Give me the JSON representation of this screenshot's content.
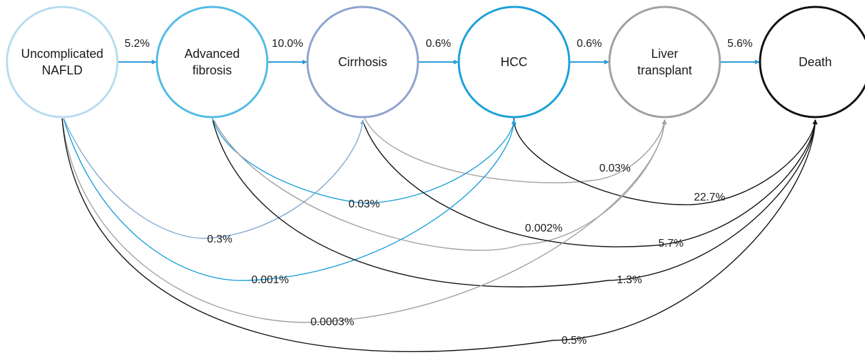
{
  "colors": {
    "light-blue": "#b7dcef",
    "sky-blue": "#52bbe6",
    "slate-blue": "#8ca3cf",
    "bright-blue": "#1aa0d8",
    "gray": "#a0a0a0",
    "black": "#111111",
    "steel-blue": "#7fa8cf",
    "forward-blue": "#2b9bd6"
  },
  "nodes": [
    {
      "id": "nafld",
      "lines": [
        "Uncomplicated",
        "NAFLD"
      ],
      "color": "light-blue"
    },
    {
      "id": "fibrosis",
      "lines": [
        "Advanced",
        "fibrosis"
      ],
      "color": "sky-blue"
    },
    {
      "id": "cirrhosis",
      "lines": [
        "Cirrhosis"
      ],
      "color": "slate-blue"
    },
    {
      "id": "hcc",
      "lines": [
        "HCC"
      ],
      "color": "bright-blue"
    },
    {
      "id": "transplant",
      "lines": [
        "Liver",
        "transplant"
      ],
      "color": "gray"
    },
    {
      "id": "death",
      "lines": [
        "Death"
      ],
      "color": "black"
    }
  ],
  "sequential_transitions": [
    {
      "from": "nafld",
      "to": "fibrosis",
      "label": "5.2%"
    },
    {
      "from": "fibrosis",
      "to": "cirrhosis",
      "label": "10.0%"
    },
    {
      "from": "cirrhosis",
      "to": "hcc",
      "label": "0.6%"
    },
    {
      "from": "hcc",
      "to": "transplant",
      "label": "0.6%"
    },
    {
      "from": "transplant",
      "to": "death",
      "label": "5.6%"
    }
  ],
  "skip_transitions": [
    {
      "from": "cirrhosis",
      "to": "transplant",
      "label": "0.03%",
      "color": "gray"
    },
    {
      "from": "hcc",
      "to": "death",
      "label": "22.7%",
      "color": "black"
    },
    {
      "from": "fibrosis",
      "to": "hcc",
      "label": "0.03%",
      "color": "bright-blue"
    },
    {
      "from": "fibrosis",
      "to": "transplant",
      "label": "0.002%",
      "color": "gray"
    },
    {
      "from": "cirrhosis",
      "to": "death",
      "label": "5.7%",
      "color": "black"
    },
    {
      "from": "nafld",
      "to": "cirrhosis",
      "label": "0.3%",
      "color": "steel-blue"
    },
    {
      "from": "nafld",
      "to": "hcc",
      "label": "0.001%",
      "color": "bright-blue"
    },
    {
      "from": "fibrosis",
      "to": "death",
      "label": "1.3%",
      "color": "black"
    },
    {
      "from": "nafld",
      "to": "transplant",
      "label": "0.0003%",
      "color": "gray"
    },
    {
      "from": "nafld",
      "to": "death",
      "label": "0.5%",
      "color": "black"
    }
  ]
}
